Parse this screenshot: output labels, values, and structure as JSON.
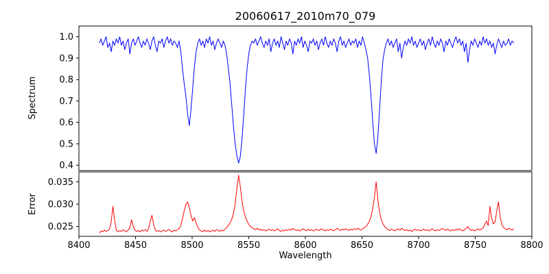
{
  "title": "20060617_2010m70_079",
  "chart_data": {
    "type": "line",
    "title": "20060617_2010m70_079",
    "xlabel": "Wavelength",
    "xlim": [
      8400,
      8800
    ],
    "xticks": [
      8400,
      8450,
      8500,
      8550,
      8600,
      8650,
      8700,
      8750,
      8800
    ],
    "x_start": 8418,
    "x_step": 1.5,
    "grid": false,
    "legend": "none",
    "panels": [
      {
        "ylabel": "Spectrum",
        "color": "#0000ff",
        "ylim": [
          0.375,
          1.05
        ],
        "yticks": [
          0.4,
          0.5,
          0.6,
          0.7,
          0.8,
          0.9,
          1.0
        ],
        "ytick_labels": [
          "0.4",
          "0.5",
          "0.6",
          "0.7",
          "0.8",
          "0.9",
          "1.0"
        ]
      },
      {
        "ylabel": "Error",
        "color": "#ff0000",
        "ylim": [
          0.0228,
          0.0372
        ],
        "yticks": [
          0.025,
          0.03,
          0.035
        ],
        "ytick_labels": [
          "0.025",
          "0.030",
          "0.035"
        ]
      }
    ],
    "absorption_lines": [
      {
        "center": 8498,
        "min_flux": 0.585
      },
      {
        "center": 8542,
        "min_flux": 0.41
      },
      {
        "center": 8662,
        "min_flux": 0.455
      }
    ],
    "series": [
      {
        "name": "spectrum",
        "panel": 0,
        "values": [
          0.97,
          0.99,
          0.96,
          0.98,
          1.0,
          0.95,
          0.97,
          0.93,
          0.98,
          0.96,
          0.99,
          0.97,
          1.0,
          0.96,
          0.98,
          0.94,
          0.97,
          0.99,
          0.92,
          0.97,
          0.99,
          0.96,
          0.98,
          1.0,
          0.97,
          0.95,
          0.98,
          0.96,
          0.99,
          0.97,
          0.94,
          0.98,
          1.0,
          0.96,
          0.93,
          0.98,
          0.97,
          0.99,
          0.95,
          0.98,
          1.0,
          0.97,
          0.99,
          0.96,
          0.98,
          0.97,
          0.95,
          0.98,
          0.93,
          0.85,
          0.78,
          0.72,
          0.64,
          0.585,
          0.66,
          0.76,
          0.86,
          0.93,
          0.97,
          0.99,
          0.96,
          0.98,
          0.95,
          0.99,
          0.97,
          1.0,
          0.96,
          0.98,
          0.94,
          0.97,
          0.99,
          0.97,
          0.95,
          0.98,
          0.96,
          0.92,
          0.85,
          0.78,
          0.68,
          0.58,
          0.5,
          0.445,
          0.41,
          0.44,
          0.52,
          0.63,
          0.75,
          0.85,
          0.92,
          0.96,
          0.98,
          0.97,
          0.99,
          0.96,
          0.98,
          1.0,
          0.97,
          0.95,
          0.98,
          0.96,
          0.99,
          0.93,
          0.97,
          0.99,
          0.96,
          0.98,
          0.95,
          1.0,
          0.97,
          0.94,
          0.98,
          0.96,
          0.99,
          0.97,
          0.92,
          0.98,
          0.96,
          0.99,
          0.97,
          1.0,
          0.95,
          0.98,
          0.96,
          0.93,
          0.98,
          0.97,
          0.99,
          0.96,
          0.98,
          0.94,
          0.97,
          0.99,
          0.96,
          1.0,
          0.97,
          0.95,
          0.98,
          0.96,
          0.99,
          0.97,
          0.93,
          0.98,
          1.0,
          0.96,
          0.98,
          0.95,
          0.97,
          0.99,
          0.96,
          0.98,
          0.97,
          0.99,
          0.95,
          0.98,
          0.96,
          1.0,
          0.97,
          0.94,
          0.9,
          0.82,
          0.72,
          0.6,
          0.5,
          0.455,
          0.53,
          0.66,
          0.79,
          0.89,
          0.94,
          0.97,
          0.99,
          0.96,
          0.98,
          0.95,
          0.97,
          0.99,
          0.93,
          0.97,
          0.9,
          0.95,
          0.98,
          0.96,
          0.99,
          0.97,
          1.0,
          0.96,
          0.98,
          0.95,
          0.97,
          0.99,
          0.96,
          0.98,
          0.94,
          0.97,
          0.99,
          0.96,
          1.0,
          0.97,
          0.95,
          0.98,
          0.96,
          0.99,
          0.97,
          0.93,
          0.98,
          0.96,
          0.99,
          0.97,
          0.95,
          0.98,
          1.0,
          0.97,
          0.99,
          0.96,
          0.98,
          0.93,
          0.97,
          0.88,
          0.94,
          0.98,
          0.96,
          0.99,
          0.97,
          0.95,
          0.98,
          0.96,
          1.0,
          0.97,
          0.99,
          0.96,
          0.98,
          0.95,
          0.97,
          0.92,
          0.96,
          0.99,
          0.97,
          0.95,
          0.98,
          0.96,
          0.97,
          0.99,
          0.96,
          0.98,
          0.97
        ]
      },
      {
        "name": "error",
        "panel": 1,
        "values": [
          0.0235,
          0.024,
          0.0238,
          0.0242,
          0.0239,
          0.0241,
          0.0244,
          0.026,
          0.0295,
          0.0265,
          0.0242,
          0.0238,
          0.0241,
          0.0239,
          0.0243,
          0.024,
          0.0238,
          0.0242,
          0.0248,
          0.0265,
          0.025,
          0.0242,
          0.0239,
          0.0241,
          0.0238,
          0.0242,
          0.024,
          0.0243,
          0.0239,
          0.0245,
          0.0262,
          0.0275,
          0.0255,
          0.0242,
          0.0239,
          0.0241,
          0.0238,
          0.024,
          0.0242,
          0.0239,
          0.0241,
          0.0243,
          0.024,
          0.0238,
          0.0242,
          0.024,
          0.0243,
          0.0245,
          0.0252,
          0.0268,
          0.0285,
          0.03,
          0.0305,
          0.0292,
          0.0275,
          0.0262,
          0.027,
          0.0258,
          0.0248,
          0.0242,
          0.024,
          0.0238,
          0.0242,
          0.0239,
          0.0241,
          0.0238,
          0.024,
          0.0242,
          0.0239,
          0.0243,
          0.0241,
          0.0239,
          0.0242,
          0.024,
          0.0244,
          0.0248,
          0.0252,
          0.0258,
          0.0266,
          0.028,
          0.03,
          0.0335,
          0.0365,
          0.034,
          0.0308,
          0.0285,
          0.0272,
          0.0262,
          0.0255,
          0.025,
          0.0247,
          0.0245,
          0.0243,
          0.0246,
          0.0242,
          0.0244,
          0.0241,
          0.0243,
          0.024,
          0.0242,
          0.0244,
          0.0241,
          0.0243,
          0.024,
          0.0242,
          0.0245,
          0.0241,
          0.0239,
          0.0242,
          0.024,
          0.0243,
          0.0241,
          0.0244,
          0.0242,
          0.0246,
          0.0243,
          0.0241,
          0.0243,
          0.024,
          0.0242,
          0.0245,
          0.0242,
          0.024,
          0.0244,
          0.0241,
          0.0243,
          0.024,
          0.0242,
          0.0244,
          0.0241,
          0.0243,
          0.0245,
          0.0242,
          0.024,
          0.0243,
          0.0241,
          0.0244,
          0.0242,
          0.024,
          0.0243,
          0.0246,
          0.0243,
          0.0241,
          0.0244,
          0.0242,
          0.0245,
          0.0243,
          0.0241,
          0.0244,
          0.0242,
          0.0245,
          0.0243,
          0.0246,
          0.0244,
          0.0242,
          0.0245,
          0.0247,
          0.025,
          0.0255,
          0.0262,
          0.0272,
          0.029,
          0.0315,
          0.035,
          0.031,
          0.0282,
          0.0265,
          0.0256,
          0.025,
          0.0246,
          0.0243,
          0.0241,
          0.0244,
          0.0242,
          0.024,
          0.0243,
          0.0245,
          0.0242,
          0.0246,
          0.0243,
          0.0241,
          0.0243,
          0.024,
          0.0242,
          0.0239,
          0.0242,
          0.0244,
          0.0241,
          0.0243,
          0.024,
          0.0242,
          0.0244,
          0.0241,
          0.0243,
          0.024,
          0.0242,
          0.0245,
          0.0242,
          0.024,
          0.0243,
          0.0241,
          0.0243,
          0.0246,
          0.0243,
          0.0241,
          0.0244,
          0.0242,
          0.024,
          0.0243,
          0.0241,
          0.0244,
          0.0242,
          0.0245,
          0.0242,
          0.024,
          0.0243,
          0.0246,
          0.025,
          0.0244,
          0.0241,
          0.0243,
          0.024,
          0.0242,
          0.0245,
          0.0242,
          0.0244,
          0.0247,
          0.0255,
          0.0262,
          0.0252,
          0.0295,
          0.0268,
          0.0256,
          0.026,
          0.0285,
          0.0305,
          0.0272,
          0.0254,
          0.0248,
          0.0245,
          0.0243,
          0.0246,
          0.0244,
          0.0242,
          0.0245
        ]
      }
    ]
  }
}
